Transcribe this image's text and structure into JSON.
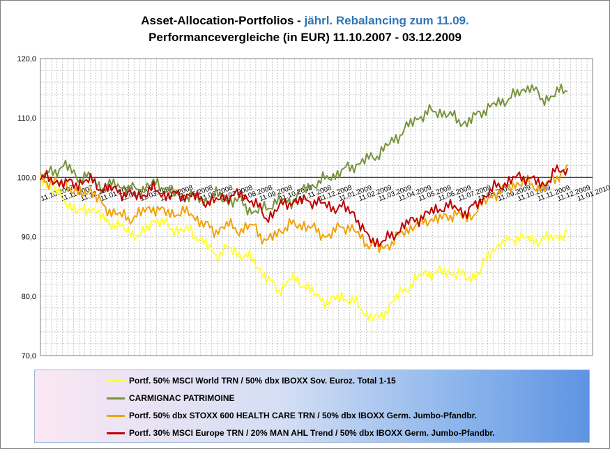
{
  "title": {
    "line1_prefix": "Asset-Allocation-Portfolios  - ",
    "line1_accent": "jährl. Rebalancing  zum 11.09.",
    "line2": "Performancevergleiche (in EUR) 11.10.2007 - 03.12.2009"
  },
  "chart_data": {
    "type": "line",
    "ylim": [
      70,
      120
    ],
    "yticks": [
      "70,0",
      "80,0",
      "90,0",
      "100,0",
      "110,0",
      "120,0"
    ],
    "xlabels": [
      "11.10.2007",
      "11.11.2007",
      "11.12.2007",
      "11.01.2008",
      "11.02.2008",
      "11.03.2008",
      "11.04.2008",
      "11.05.2008",
      "11.06.2008",
      "11.07.2008",
      "11.08.2008",
      "11.09.2008",
      "11.10.2008",
      "11.11.2008",
      "11.12.2008",
      "11.01.2009",
      "11.02.2009",
      "11.03.2009",
      "11.04.2009",
      "11.05.2009",
      "11.06.2009",
      "11.07.2009",
      "11.08.2009",
      "11.09.2009",
      "11.10.2009",
      "11.11.2009",
      "11.12.2009",
      "11.01.2010"
    ],
    "grid": true,
    "legend_position": "bottom",
    "series": [
      {
        "name": "Portf. 50% MSCI World TRN / 50% dbx IBOXX Sov. Euroz. Total 1-15",
        "color": "#ffff33",
        "values": [
          100,
          98,
          96,
          94,
          95,
          93,
          92,
          91,
          90,
          93,
          92,
          91,
          91,
          89,
          87,
          88,
          87,
          86,
          83,
          81,
          83,
          82,
          80,
          79,
          80,
          79,
          77,
          76,
          79,
          81,
          83,
          84,
          84,
          84,
          83,
          84,
          88,
          89,
          90,
          89.5,
          89.5,
          90,
          90.5
        ]
      },
      {
        "name": "CARMIGNAC PATRIMOINE",
        "color": "#77933c",
        "values": [
          100,
          101,
          102,
          100,
          100,
          98,
          99,
          98,
          98,
          99,
          98,
          97,
          97,
          96,
          97,
          96,
          96,
          94,
          95,
          96,
          96,
          98,
          99,
          100,
          101,
          102,
          103,
          104,
          106,
          108,
          110,
          111,
          111,
          110,
          109,
          111,
          112,
          113,
          114,
          115.5,
          113,
          114,
          115
        ]
      },
      {
        "name": "Portf. 50% dbx STOXX 600  HEALTH CARE TRN / 50% dbx IBOXX Germ. Jumbo-Pfandbr.",
        "color": "#f0a30a",
        "values": [
          100,
          99,
          99,
          97,
          98,
          95,
          94,
          93,
          94,
          95,
          94,
          94,
          94,
          92,
          91,
          92,
          91,
          92,
          89,
          91,
          92,
          92,
          91,
          90,
          92,
          91,
          89,
          88,
          89,
          91,
          92,
          93,
          93,
          94,
          93,
          95,
          97,
          98,
          99,
          99,
          98,
          100,
          101.5
        ]
      },
      {
        "name": "Portf. 30% MSCI Europe TRN / 20% MAN AHL Trend / 50% dbx IBOXX Germ. Jumbo-Pfandbr.",
        "color": "#c00000",
        "values": [
          100,
          99.5,
          99,
          99,
          99.5,
          98,
          98,
          97,
          97,
          98,
          97,
          97,
          97,
          96,
          96,
          97,
          97,
          96,
          93,
          95,
          96,
          96,
          96,
          95,
          95,
          94,
          90,
          89,
          90,
          92,
          93,
          94,
          95,
          95,
          94,
          96,
          98,
          99,
          100,
          100,
          98.5,
          101,
          101
        ]
      }
    ]
  }
}
